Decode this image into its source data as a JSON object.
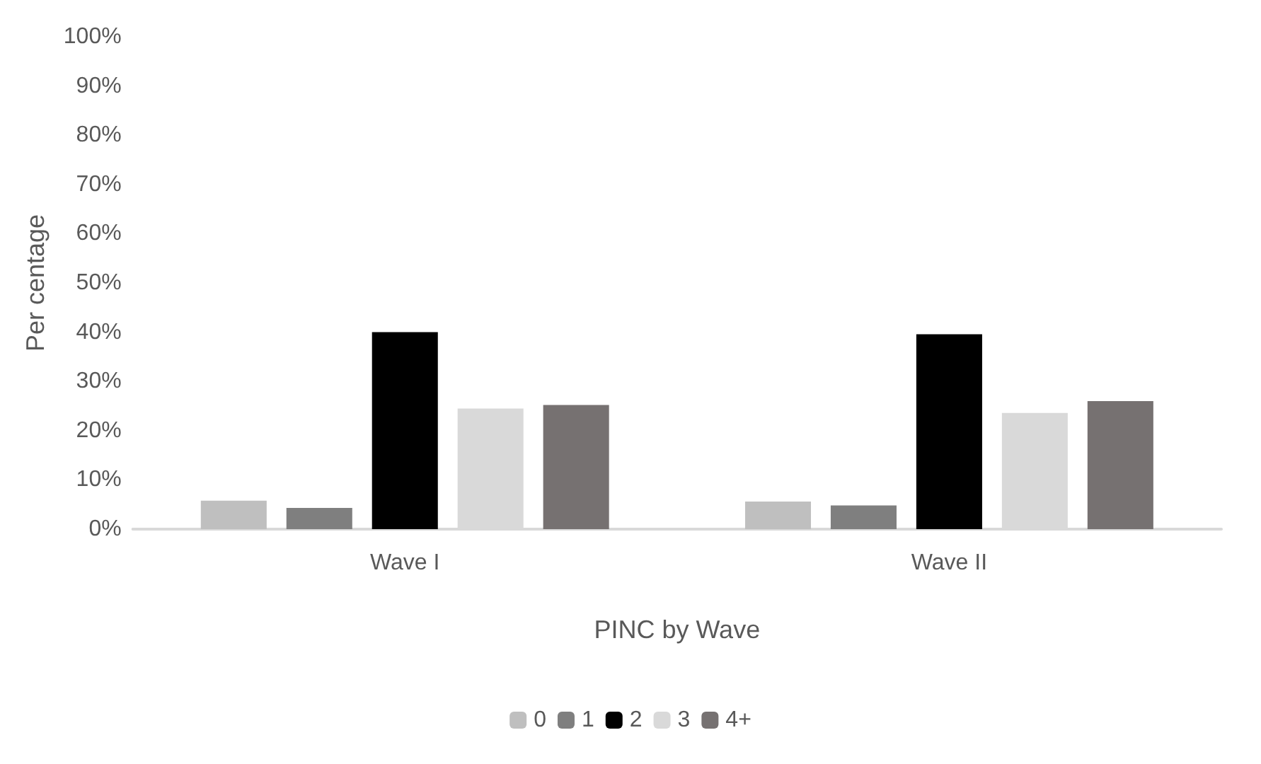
{
  "chart_data": {
    "type": "bar",
    "xlabel": "PINC by Wave",
    "ylabel": "Per centage",
    "categories": [
      "Wave I",
      "Wave II"
    ],
    "series": [
      {
        "name": "0",
        "color": "#bfbfbf",
        "values": [
          5.8,
          5.6
        ]
      },
      {
        "name": "1",
        "color": "#7f7f7f",
        "values": [
          4.3,
          4.8
        ]
      },
      {
        "name": "2",
        "color": "#000000",
        "values": [
          40,
          39.6
        ]
      },
      {
        "name": "3",
        "color": "#d9d9d9",
        "values": [
          24.5,
          23.6
        ]
      },
      {
        "name": "4+",
        "color": "#767171",
        "values": [
          25.2,
          26
        ]
      }
    ],
    "ylim": [
      0,
      100
    ],
    "yticks": [
      {
        "value": 0,
        "label": "0%"
      },
      {
        "value": 10,
        "label": "10%"
      },
      {
        "value": 20,
        "label": "20%"
      },
      {
        "value": 30,
        "label": "30%"
      },
      {
        "value": 40,
        "label": "40%"
      },
      {
        "value": 50,
        "label": "50%"
      },
      {
        "value": 60,
        "label": "60%"
      },
      {
        "value": 70,
        "label": "70%"
      },
      {
        "value": 80,
        "label": "80%"
      },
      {
        "value": 90,
        "label": "90%"
      },
      {
        "value": 100,
        "label": "100%"
      }
    ],
    "grid": false,
    "legend": "bottom"
  }
}
